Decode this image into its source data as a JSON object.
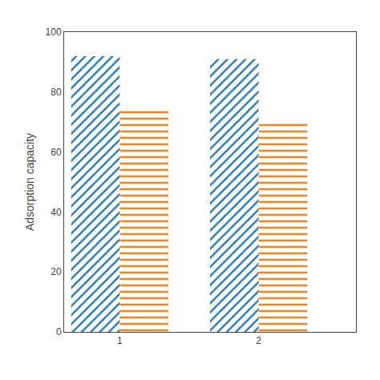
{
  "chart_data": {
    "type": "bar",
    "x": [
      1,
      2
    ],
    "series": [
      {
        "values": [
          92,
          91
        ]
      },
      {
        "values": [
          75,
          70
        ]
      }
    ],
    "xlim": [
      0.6,
      2.7
    ],
    "xticks": [
      1,
      2
    ],
    "ylim": [
      0,
      100
    ],
    "yticks": [
      0,
      20,
      40,
      60,
      80,
      100
    ],
    "ylabel": "Adsorption capacity",
    "grid": false
  }
}
